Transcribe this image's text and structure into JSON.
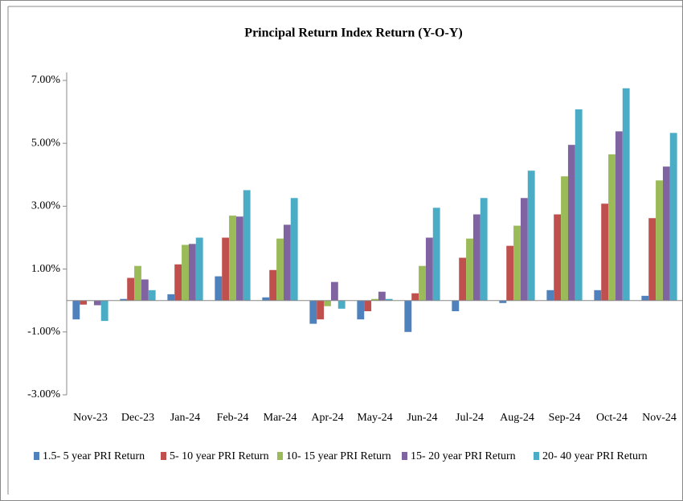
{
  "chart_data": {
    "type": "bar",
    "title": "Principal Return Index Return (Y-O-Y)",
    "categories": [
      "Nov-23",
      "Dec-23",
      "Jan-24",
      "Feb-24",
      "Mar-24",
      "Apr-24",
      "May-24",
      "Jun-24",
      "Jul-24",
      "Aug-24",
      "Sep-24",
      "Oct-24",
      "Nov-24"
    ],
    "series": [
      {
        "name": "1.5- 5 year PRI Return",
        "color": "#4f81bd",
        "values": [
          -0.6,
          0.05,
          0.2,
          0.77,
          0.1,
          -0.74,
          -0.6,
          -1.0,
          -0.34,
          -0.08,
          0.33,
          0.33,
          0.15
        ]
      },
      {
        "name": "5- 10 year PRI Return",
        "color": "#c0504d",
        "values": [
          -0.13,
          0.72,
          1.15,
          2.0,
          0.97,
          -0.6,
          -0.34,
          0.23,
          1.36,
          1.74,
          2.74,
          3.08,
          2.62
        ]
      },
      {
        "name": "10- 15 year PRI Return",
        "color": "#9bbb59",
        "values": [
          0.0,
          1.1,
          1.77,
          2.7,
          1.97,
          -0.18,
          0.05,
          1.1,
          1.97,
          2.38,
          3.95,
          4.65,
          3.82
        ]
      },
      {
        "name": "15- 20 year PRI Return",
        "color": "#8064a2",
        "values": [
          -0.15,
          0.67,
          1.8,
          2.67,
          2.41,
          0.59,
          0.28,
          2.0,
          2.74,
          3.26,
          4.95,
          5.38,
          4.26
        ]
      },
      {
        "name": "20- 40 year PRI Return",
        "color": "#4bacc6",
        "values": [
          -0.65,
          0.33,
          2.0,
          3.51,
          3.26,
          -0.26,
          0.05,
          2.95,
          3.26,
          4.13,
          6.08,
          6.75,
          5.33
        ]
      }
    ],
    "ylim": [
      -3,
      7
    ],
    "yticks": [
      {
        "value": -3,
        "label": "-3.00%"
      },
      {
        "value": -1,
        "label": "-1.00%"
      },
      {
        "value": 1,
        "label": "1.00%"
      },
      {
        "value": 3,
        "label": "3.00%"
      },
      {
        "value": 5,
        "label": "5.00%"
      },
      {
        "value": 7,
        "label": "7.00%"
      }
    ],
    "grid": false,
    "legend": "bottom"
  }
}
